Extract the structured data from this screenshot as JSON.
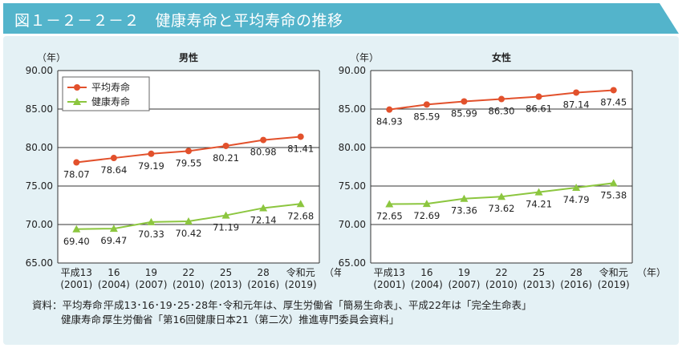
{
  "figure_title": "図１－２－２－２　健康寿命と平均寿命の推移",
  "source": {
    "label": "資料：",
    "lines": [
      {
        "key": "平均寿命：",
        "text": "平成13･16･19･25･28年･令和元年は、厚生労働省「簡易生命表」、平成22年は「完全生命表」"
      },
      {
        "key": "健康寿命：",
        "text": "厚生労働省「第16回健康日本21（第二次）推進専門委員会資料」"
      }
    ]
  },
  "colors": {
    "title_band": "#53b4cb",
    "panel_bg": "#e4f1f5",
    "average_line": "#e2512c",
    "healthy_line": "#8cc63f"
  },
  "chart_data": [
    {
      "type": "line",
      "title": "男性",
      "ylabel": "（年）",
      "xlabel": "（年）",
      "ylim": [
        65,
        90
      ],
      "yticks": [
        "65.00",
        "70.00",
        "75.00",
        "80.00",
        "85.00",
        "90.00"
      ],
      "categories": [
        [
          "平成13",
          "(2001)"
        ],
        [
          "16",
          "(2004)"
        ],
        [
          "19",
          "(2007)"
        ],
        [
          "22",
          "(2010)"
        ],
        [
          "25",
          "(2013)"
        ],
        [
          "28",
          "(2016)"
        ],
        [
          "令和元",
          "(2019)"
        ]
      ],
      "legend": {
        "show": true,
        "position": "top-left"
      },
      "series": [
        {
          "name": "平均寿命",
          "marker": "circle",
          "values": [
            78.07,
            78.64,
            79.19,
            79.55,
            80.21,
            80.98,
            81.41
          ],
          "labels": [
            "78.07",
            "78.64",
            "79.19",
            "79.55",
            "80.21",
            "80.98",
            "81.41"
          ]
        },
        {
          "name": "健康寿命",
          "marker": "triangle",
          "values": [
            69.4,
            69.47,
            70.33,
            70.42,
            71.19,
            72.14,
            72.68
          ],
          "labels": [
            "69.40",
            "69.47",
            "70.33",
            "70.42",
            "71.19",
            "72.14",
            "72.68"
          ]
        }
      ]
    },
    {
      "type": "line",
      "title": "女性",
      "ylabel": "（年）",
      "xlabel": "（年）",
      "ylim": [
        65,
        90
      ],
      "yticks": [
        "65.00",
        "70.00",
        "75.00",
        "80.00",
        "85.00",
        "90.00"
      ],
      "categories": [
        [
          "平成13",
          "(2001)"
        ],
        [
          "16",
          "(2004)"
        ],
        [
          "19",
          "(2007)"
        ],
        [
          "22",
          "(2010)"
        ],
        [
          "25",
          "(2013)"
        ],
        [
          "28",
          "(2016)"
        ],
        [
          "令和元",
          "(2019)"
        ]
      ],
      "legend": {
        "show": false
      },
      "series": [
        {
          "name": "平均寿命",
          "marker": "circle",
          "values": [
            84.93,
            85.59,
            85.99,
            86.3,
            86.61,
            87.14,
            87.45
          ],
          "labels": [
            "84.93",
            "85.59",
            "85.99",
            "86.30",
            "86.61",
            "87.14",
            "87.45"
          ]
        },
        {
          "name": "健康寿命",
          "marker": "triangle",
          "values": [
            72.65,
            72.69,
            73.36,
            73.62,
            74.21,
            74.79,
            75.38
          ],
          "labels": [
            "72.65",
            "72.69",
            "73.36",
            "73.62",
            "74.21",
            "74.79",
            "75.38"
          ]
        }
      ]
    }
  ]
}
